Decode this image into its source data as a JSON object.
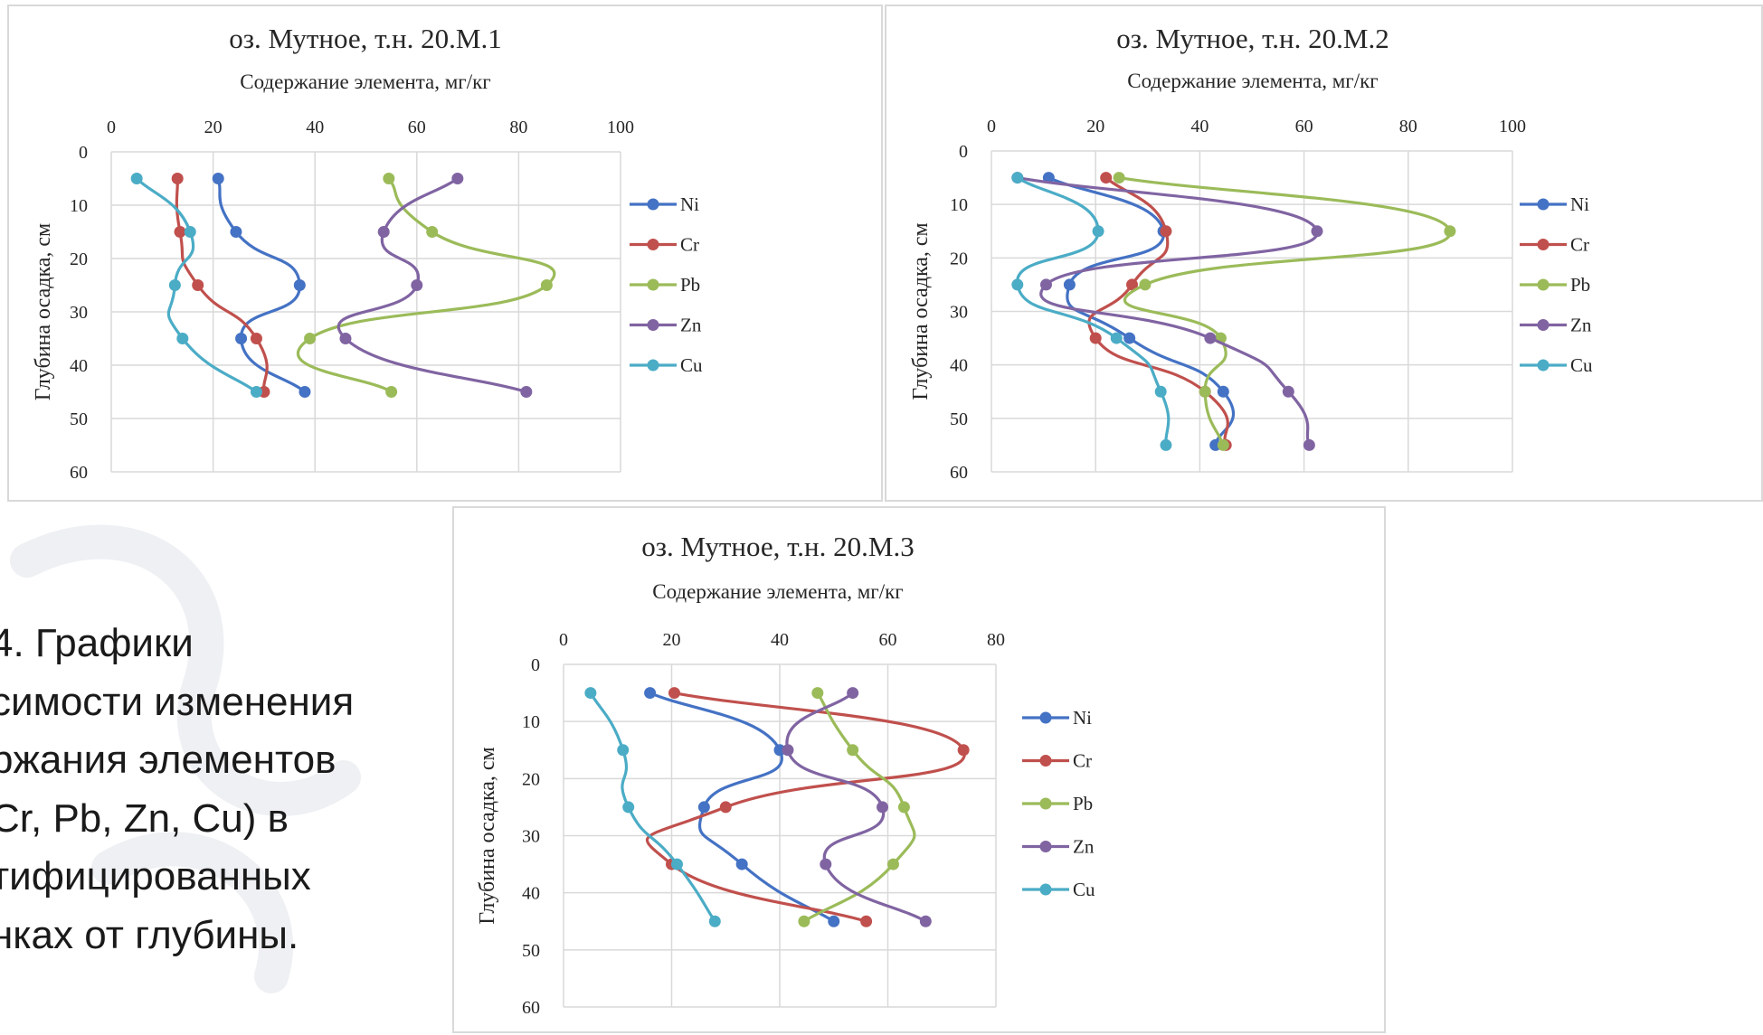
{
  "caption": {
    "text": "4. Графики\nсимости изменения\nржания элементов\nCr, Pb, Zn, Cu) в\nтифицированных\nнках от глубины."
  },
  "colors": {
    "Ni": "#4472c4",
    "Cr": "#c0504d",
    "Pb": "#9bbb59",
    "Zn": "#8064a2",
    "Cu": "#4bacc6"
  },
  "chart_data": [
    {
      "type": "line",
      "title": "оз. Мутное, т.н. 20.М.1",
      "xlabel": "Содержание элемента, мг/кг",
      "ylabel": "Глубина осадка, см",
      "xlim": [
        0,
        100
      ],
      "ylim": [
        0,
        60
      ],
      "xticks": [
        "0",
        "20",
        "40",
        "60",
        "80",
        "100"
      ],
      "yticks": [
        "0",
        "10",
        "20",
        "30",
        "40",
        "50",
        "60"
      ],
      "y_reversed": true,
      "x_axis_position": "top",
      "grid": true,
      "legend": "right",
      "series": [
        {
          "name": "Ni",
          "points": [
            [
              21,
              5
            ],
            [
              24.5,
              15
            ],
            [
              37,
              25
            ],
            [
              25.5,
              35
            ],
            [
              38,
              45
            ]
          ]
        },
        {
          "name": "Cr",
          "points": [
            [
              13,
              5
            ],
            [
              13.5,
              15
            ],
            [
              17,
              25
            ],
            [
              28.5,
              35
            ],
            [
              30,
              45
            ]
          ]
        },
        {
          "name": "Pb",
          "points": [
            [
              54.5,
              5
            ],
            [
              63,
              15
            ],
            [
              85.5,
              25
            ],
            [
              39,
              35
            ],
            [
              55,
              45
            ]
          ]
        },
        {
          "name": "Zn",
          "points": [
            [
              68,
              5
            ],
            [
              53.5,
              15
            ],
            [
              60,
              25
            ],
            [
              46,
              35
            ],
            [
              81.5,
              45
            ]
          ]
        },
        {
          "name": "Cu",
          "points": [
            [
              5,
              5
            ],
            [
              15.5,
              15
            ],
            [
              12.5,
              25
            ],
            [
              14,
              35
            ],
            [
              28.5,
              45
            ]
          ]
        }
      ]
    },
    {
      "type": "line",
      "title": "оз. Мутное, т.н. 20.М.2",
      "xlabel": "Содержание элемента, мг/кг",
      "ylabel": "Глубина осадка, см",
      "xlim": [
        0,
        100
      ],
      "ylim": [
        0,
        60
      ],
      "xticks": [
        "0",
        "20",
        "40",
        "60",
        "80",
        "100"
      ],
      "yticks": [
        "0",
        "10",
        "20",
        "30",
        "40",
        "50",
        "60"
      ],
      "y_reversed": true,
      "x_axis_position": "top",
      "grid": true,
      "legend": "right",
      "series": [
        {
          "name": "Ni",
          "points": [
            [
              11,
              5
            ],
            [
              33,
              15
            ],
            [
              15,
              25
            ],
            [
              26.5,
              35
            ],
            [
              44.5,
              45
            ],
            [
              43,
              55
            ]
          ]
        },
        {
          "name": "Cr",
          "points": [
            [
              22,
              5
            ],
            [
              33.5,
              15
            ],
            [
              27,
              25
            ],
            [
              20,
              35
            ],
            [
              41,
              45
            ],
            [
              45,
              55
            ]
          ]
        },
        {
          "name": "Pb",
          "points": [
            [
              24.5,
              5
            ],
            [
              88,
              15
            ],
            [
              29.5,
              25
            ],
            [
              44,
              35
            ],
            [
              41,
              45
            ],
            [
              44.5,
              55
            ]
          ]
        },
        {
          "name": "Zn",
          "points": [
            [
              5,
              5
            ],
            [
              62.5,
              15
            ],
            [
              10.5,
              25
            ],
            [
              42,
              35
            ],
            [
              57,
              45
            ],
            [
              61,
              55
            ]
          ]
        },
        {
          "name": "Cu",
          "points": [
            [
              5,
              5
            ],
            [
              20.5,
              15
            ],
            [
              5,
              25
            ],
            [
              24,
              35
            ],
            [
              32.5,
              45
            ],
            [
              33.5,
              55
            ]
          ]
        }
      ]
    },
    {
      "type": "line",
      "title": "оз. Мутное, т.н. 20.М.3",
      "xlabel": "Содержание элемента, мг/кг",
      "ylabel": "Глубина осадка, см",
      "xlim": [
        0,
        80
      ],
      "ylim": [
        0,
        60
      ],
      "xticks": [
        "0",
        "20",
        "40",
        "60",
        "80"
      ],
      "yticks": [
        "0",
        "10",
        "20",
        "30",
        "40",
        "50",
        "60"
      ],
      "y_reversed": true,
      "x_axis_position": "top",
      "grid": true,
      "legend": "right",
      "series": [
        {
          "name": "Ni",
          "points": [
            [
              16,
              5
            ],
            [
              40,
              15
            ],
            [
              26,
              25
            ],
            [
              33,
              35
            ],
            [
              50,
              45
            ]
          ]
        },
        {
          "name": "Cr",
          "points": [
            [
              20.5,
              5
            ],
            [
              74,
              15
            ],
            [
              30,
              25
            ],
            [
              20,
              35
            ],
            [
              56,
              45
            ]
          ]
        },
        {
          "name": "Pb",
          "points": [
            [
              47,
              5
            ],
            [
              53.5,
              15
            ],
            [
              63,
              25
            ],
            [
              61,
              35
            ],
            [
              44.5,
              45
            ]
          ]
        },
        {
          "name": "Zn",
          "points": [
            [
              53.5,
              5
            ],
            [
              41.5,
              15
            ],
            [
              59,
              25
            ],
            [
              48.5,
              35
            ],
            [
              67,
              45
            ]
          ]
        },
        {
          "name": "Cu",
          "points": [
            [
              5,
              5
            ],
            [
              11,
              15
            ],
            [
              12,
              25
            ],
            [
              21,
              35
            ],
            [
              28,
              45
            ]
          ]
        }
      ]
    }
  ]
}
